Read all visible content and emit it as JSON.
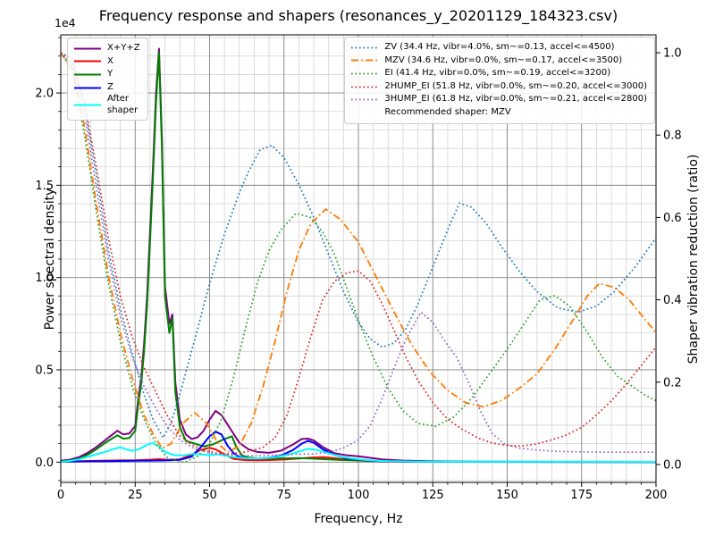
{
  "chart_data": {
    "type": "line",
    "title": "Frequency response and shapers (resonances_y_20201129_184323.csv)",
    "xlabel": "Frequency, Hz",
    "x_axis": {
      "min": 0,
      "max": 200,
      "major_ticks": [
        0,
        25,
        50,
        75,
        100,
        125,
        150,
        175,
        200
      ],
      "minor_step": 5
    },
    "y_left": {
      "label": "Power spectral density",
      "offset_text": "1e4",
      "range": [
        -1100,
        23150
      ],
      "major_ticks": [
        0,
        5000,
        10000,
        15000,
        20000
      ],
      "tick_labels": [
        "0.0",
        "0.5",
        "1.0",
        "1.5",
        "2.0"
      ],
      "minor_step": 1000
    },
    "y_right": {
      "label": "Shaper vibration reduction (ratio)",
      "range": [
        -0.0435,
        1.0435
      ],
      "major_ticks": [
        0,
        0.2,
        0.4,
        0.6,
        0.8,
        1.0
      ],
      "tick_labels": [
        "0.0",
        "0.2",
        "0.4",
        "0.6",
        "0.8",
        "1.0"
      ]
    },
    "grid": {
      "major_color": "#808080",
      "minor_color": "#d3d3d3",
      "on": true,
      "which": "both"
    },
    "legend_positions": {
      "psd": "upper left",
      "shapers": "upper right"
    },
    "series": [
      {
        "name": "X+Y+Z",
        "axis": "left",
        "color": "#800080",
        "style": "solid",
        "x": [
          0,
          3,
          6,
          9,
          12,
          15,
          17,
          19,
          21,
          23,
          25,
          26,
          27,
          28,
          29,
          30,
          31,
          32,
          33,
          34,
          35,
          36.5,
          37.5,
          38.5,
          40,
          42,
          44,
          46,
          48,
          50,
          52,
          54,
          56,
          58,
          60,
          63,
          66,
          70,
          74,
          78,
          81,
          83,
          85,
          88,
          92,
          96,
          100,
          104,
          108,
          115,
          125,
          140,
          200
        ],
        "y": [
          70,
          130,
          260,
          500,
          820,
          1200,
          1450,
          1700,
          1500,
          1550,
          1950,
          3400,
          4500,
          6400,
          9000,
          12500,
          16000,
          20000,
          22400,
          17500,
          9500,
          7500,
          8000,
          4300,
          2300,
          1500,
          1250,
          1350,
          1700,
          2300,
          2770,
          2550,
          2050,
          1550,
          1050,
          700,
          550,
          500,
          620,
          950,
          1250,
          1270,
          1180,
          820,
          480,
          370,
          320,
          230,
          150,
          80,
          40,
          25,
          15
        ]
      },
      {
        "name": "X",
        "axis": "left",
        "color": "#ff0000",
        "style": "solid",
        "x": [
          0,
          5,
          10,
          15,
          20,
          25,
          30,
          33,
          36,
          40,
          44,
          47,
          50,
          52,
          55,
          58,
          62,
          66,
          70,
          75,
          80,
          84,
          88,
          92,
          96,
          100,
          105,
          110,
          120,
          200
        ],
        "y": [
          30,
          40,
          60,
          80,
          90,
          100,
          130,
          160,
          120,
          150,
          400,
          650,
          780,
          690,
          420,
          180,
          110,
          95,
          110,
          140,
          190,
          240,
          270,
          210,
          130,
          85,
          50,
          30,
          15,
          8
        ]
      },
      {
        "name": "Y",
        "axis": "left",
        "color": "#008000",
        "style": "solid",
        "x": [
          0,
          3,
          6,
          9,
          12,
          15,
          17,
          19,
          21,
          23,
          25,
          26,
          27,
          28,
          29,
          30,
          31,
          32,
          33,
          34,
          35,
          36.5,
          37.5,
          38.5,
          40,
          42,
          45,
          48,
          51,
          53,
          55,
          57.5,
          59,
          61,
          63,
          66,
          70,
          75,
          80,
          83,
          86,
          90,
          95,
          100,
          105,
          110,
          120,
          140,
          200
        ],
        "y": [
          30,
          80,
          180,
          400,
          700,
          1050,
          1250,
          1450,
          1270,
          1300,
          1700,
          3100,
          4200,
          6000,
          8500,
          12000,
          15500,
          19500,
          22200,
          17000,
          9000,
          7000,
          7800,
          3800,
          1900,
          1150,
          1000,
          850,
          950,
          1100,
          1250,
          1400,
          800,
          350,
          250,
          200,
          200,
          200,
          210,
          200,
          180,
          150,
          110,
          90,
          60,
          40,
          25,
          15,
          10
        ]
      },
      {
        "name": "Z",
        "axis": "left",
        "color": "#0000ff",
        "style": "solid",
        "x": [
          0,
          5,
          10,
          15,
          20,
          25,
          30,
          35,
          40,
          44,
          47,
          50,
          52,
          54,
          56,
          58,
          60,
          63,
          66,
          70,
          74,
          78,
          81,
          83,
          85,
          88,
          92,
          96,
          100,
          104,
          108,
          115,
          130,
          200
        ],
        "y": [
          30,
          35,
          40,
          50,
          60,
          70,
          80,
          90,
          120,
          300,
          800,
          1400,
          1650,
          1500,
          900,
          500,
          260,
          200,
          200,
          230,
          350,
          650,
          1000,
          1150,
          1050,
          700,
          380,
          200,
          140,
          80,
          50,
          25,
          12,
          6
        ]
      },
      {
        "name": "After shaper",
        "axis": "left",
        "color": "#00ffff",
        "style": "solid",
        "x": [
          0,
          3,
          6,
          9,
          12,
          15,
          18,
          20,
          22,
          24,
          26,
          28,
          30,
          31,
          33,
          35,
          38,
          41,
          44,
          47,
          50,
          53,
          56,
          60,
          64,
          68,
          72,
          76,
          79,
          83,
          86,
          90,
          94,
          98,
          102,
          106,
          110,
          120,
          200
        ],
        "y": [
          20,
          60,
          150,
          280,
          430,
          560,
          720,
          800,
          680,
          620,
          680,
          850,
          1000,
          1020,
          850,
          550,
          380,
          360,
          440,
          420,
          380,
          420,
          330,
          230,
          200,
          210,
          260,
          380,
          520,
          720,
          660,
          480,
          300,
          190,
          120,
          70,
          45,
          25,
          12
        ]
      },
      {
        "name": "ZV",
        "axis": "right",
        "color": "#1f77b4",
        "style": "dotted",
        "x": [
          0,
          4,
          8,
          12,
          16,
          20,
          24,
          28,
          31,
          34.4,
          37,
          40,
          43,
          46,
          50,
          55,
          60,
          63,
          67,
          71,
          75,
          80,
          85,
          90,
          95,
          100,
          104,
          108,
          112,
          116,
          120,
          125,
          130,
          134,
          138,
          143,
          148,
          154,
          160,
          167,
          174,
          180,
          186,
          193,
          200
        ],
        "y": [
          1.0,
          0.985,
          0.87,
          0.7,
          0.52,
          0.38,
          0.27,
          0.17,
          0.11,
          0.065,
          0.1,
          0.17,
          0.25,
          0.33,
          0.44,
          0.56,
          0.66,
          0.71,
          0.765,
          0.775,
          0.745,
          0.68,
          0.6,
          0.51,
          0.42,
          0.345,
          0.305,
          0.285,
          0.295,
          0.33,
          0.39,
          0.48,
          0.57,
          0.635,
          0.625,
          0.585,
          0.53,
          0.47,
          0.42,
          0.38,
          0.37,
          0.385,
          0.42,
          0.48,
          0.55
        ]
      },
      {
        "name": "MZV",
        "axis": "right",
        "color": "#ff7f0e",
        "style": "dashdot",
        "x": [
          0,
          4,
          8,
          12,
          16,
          20,
          24,
          28,
          31,
          34,
          37,
          41,
          45,
          49,
          53,
          56,
          60,
          64,
          68,
          72,
          76,
          80,
          84,
          89,
          94,
          100,
          106,
          112,
          118,
          124,
          130,
          136,
          142,
          148,
          154,
          160,
          166,
          172,
          177,
          181,
          186,
          191,
          196,
          200
        ],
        "y": [
          1.0,
          0.96,
          0.82,
          0.63,
          0.46,
          0.32,
          0.21,
          0.12,
          0.075,
          0.04,
          0.05,
          0.1,
          0.126,
          0.1,
          0.05,
          0.03,
          0.045,
          0.1,
          0.19,
          0.3,
          0.42,
          0.52,
          0.585,
          0.62,
          0.595,
          0.54,
          0.455,
          0.37,
          0.29,
          0.225,
          0.18,
          0.15,
          0.14,
          0.155,
          0.185,
          0.22,
          0.28,
          0.35,
          0.41,
          0.44,
          0.43,
          0.4,
          0.355,
          0.32
        ]
      },
      {
        "name": "EI",
        "axis": "right",
        "color": "#2ca02c",
        "style": "dotted",
        "x": [
          0,
          4,
          8,
          12,
          16,
          20,
          24,
          28,
          32,
          36,
          41.4,
          46,
          50,
          54,
          58,
          62,
          66,
          70,
          74,
          79,
          84,
          88,
          92,
          96,
          100,
          105,
          110,
          115,
          120,
          126,
          132,
          138,
          144,
          150,
          156,
          161,
          166,
          171,
          177,
          182,
          187,
          192,
          196,
          200
        ],
        "y": [
          1.0,
          0.955,
          0.8,
          0.61,
          0.44,
          0.3,
          0.19,
          0.11,
          0.05,
          0.015,
          0.005,
          0.02,
          0.05,
          0.11,
          0.21,
          0.33,
          0.44,
          0.52,
          0.57,
          0.61,
          0.6,
          0.565,
          0.51,
          0.43,
          0.35,
          0.26,
          0.185,
          0.13,
          0.1,
          0.093,
          0.115,
          0.16,
          0.22,
          0.28,
          0.345,
          0.4,
          0.41,
          0.385,
          0.32,
          0.26,
          0.215,
          0.19,
          0.17,
          0.155
        ]
      },
      {
        "name": "2HUMP_EI",
        "axis": "right",
        "color": "#d62728",
        "style": "dotted",
        "x": [
          0,
          4,
          8,
          12,
          16,
          20,
          24,
          28,
          32,
          36,
          40,
          44,
          48,
          52,
          56,
          60,
          64,
          68,
          72,
          76,
          80,
          84,
          88,
          92,
          96,
          100,
          104,
          108,
          112,
          116,
          120,
          125,
          130,
          135,
          140,
          145,
          150,
          155,
          160,
          165,
          170,
          175,
          180,
          185,
          190,
          195,
          200
        ],
        "y": [
          1.0,
          0.975,
          0.88,
          0.72,
          0.55,
          0.41,
          0.31,
          0.235,
          0.175,
          0.115,
          0.07,
          0.048,
          0.035,
          0.028,
          0.026,
          0.028,
          0.033,
          0.042,
          0.065,
          0.12,
          0.21,
          0.31,
          0.4,
          0.445,
          0.465,
          0.47,
          0.445,
          0.39,
          0.325,
          0.26,
          0.205,
          0.15,
          0.11,
          0.085,
          0.065,
          0.052,
          0.046,
          0.045,
          0.05,
          0.06,
          0.072,
          0.09,
          0.12,
          0.155,
          0.195,
          0.24,
          0.285
        ]
      },
      {
        "name": "3HUMP_EI",
        "axis": "right",
        "color": "#9467bd",
        "style": "dotted",
        "x": [
          0,
          4,
          8,
          12,
          16,
          20,
          24,
          28,
          32,
          36,
          40,
          45,
          50,
          55,
          60,
          65,
          70,
          75,
          80,
          85,
          90,
          95,
          100,
          104,
          108,
          112,
          116,
          121,
          125,
          129,
          133,
          137,
          141,
          145,
          149,
          154,
          160,
          166,
          172,
          180,
          190,
          200
        ],
        "y": [
          1.0,
          0.97,
          0.85,
          0.67,
          0.5,
          0.36,
          0.26,
          0.19,
          0.135,
          0.09,
          0.06,
          0.038,
          0.028,
          0.024,
          0.022,
          0.021,
          0.022,
          0.024,
          0.025,
          0.026,
          0.03,
          0.04,
          0.06,
          0.095,
          0.16,
          0.235,
          0.305,
          0.37,
          0.345,
          0.3,
          0.26,
          0.2,
          0.13,
          0.075,
          0.05,
          0.04,
          0.035,
          0.032,
          0.031,
          0.03,
          0.03,
          0.03
        ]
      }
    ]
  },
  "legend_psd": {
    "items": [
      {
        "label": "X+Y+Z",
        "color": "#800080",
        "style": "solid"
      },
      {
        "label": "X",
        "color": "#ff0000",
        "style": "solid"
      },
      {
        "label": "Y",
        "color": "#008000",
        "style": "solid"
      },
      {
        "label": "Z",
        "color": "#0000ff",
        "style": "solid"
      },
      {
        "label": "After\nshaper",
        "color": "#00ffff",
        "style": "solid"
      }
    ]
  },
  "legend_shapers": {
    "items": [
      {
        "label": "ZV (34.4 Hz, vibr=4.0%, sm~=0.13, accel<=4500)",
        "color": "#1f77b4",
        "style": "dotted"
      },
      {
        "label": "MZV (34.6 Hz, vibr=0.0%, sm~=0.17, accel<=3500)",
        "color": "#ff7f0e",
        "style": "dashdot"
      },
      {
        "label": "EI (41.4 Hz, vibr=0.0%, sm~=0.19, accel<=3200)",
        "color": "#2ca02c",
        "style": "dotted"
      },
      {
        "label": "2HUMP_EI (51.8 Hz, vibr=0.0%, sm~=0.20, accel<=3000)",
        "color": "#d62728",
        "style": "dotted"
      },
      {
        "label": "3HUMP_EI (61.8 Hz, vibr=0.0%, sm~=0.21, accel<=2800)",
        "color": "#9467bd",
        "style": "dotted"
      }
    ],
    "footnote": "Recommended shaper: MZV"
  }
}
